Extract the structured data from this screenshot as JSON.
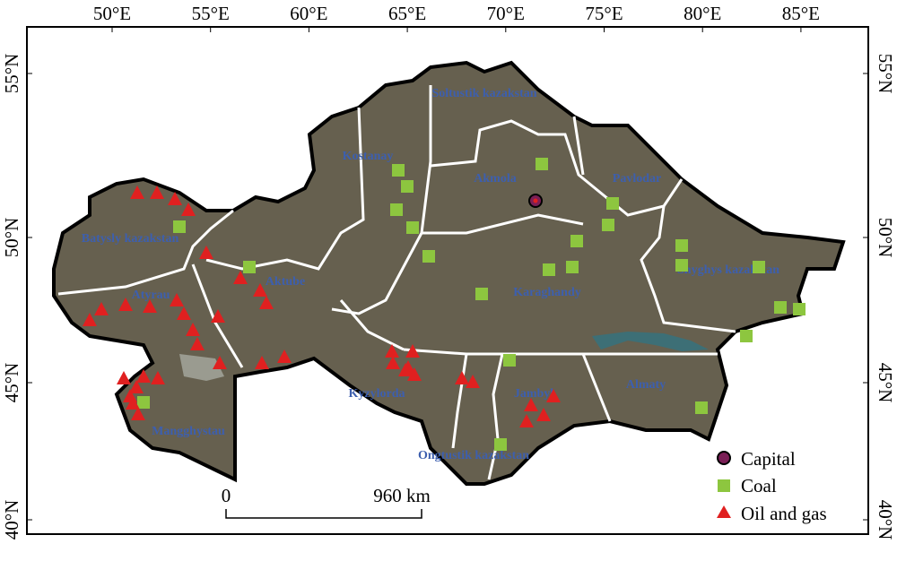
{
  "map": {
    "lon_ticks": [
      {
        "value": 50,
        "label": "50°E"
      },
      {
        "value": 55,
        "label": "55°E"
      },
      {
        "value": 60,
        "label": "60°E"
      },
      {
        "value": 65,
        "label": "65°E"
      },
      {
        "value": 70,
        "label": "70°E"
      },
      {
        "value": 75,
        "label": "75°E"
      },
      {
        "value": 80,
        "label": "80°E"
      },
      {
        "value": 85,
        "label": "85°E"
      }
    ],
    "lat_ticks": [
      {
        "value": 40,
        "label": "40°N"
      },
      {
        "value": 45,
        "label": "45°N"
      },
      {
        "value": 50,
        "label": "50°N"
      },
      {
        "value": 55,
        "label": "55°N"
      }
    ],
    "regions": [
      "Soltustik kazakstan",
      "Kostanay",
      "Akmola",
      "Pavlodar",
      "Batysly kazakstan",
      "Atyrau",
      "Aktube",
      "Karaghandy",
      "Shyghys kazakstan",
      "Kyzylorda",
      "Jambyl",
      "Almaty",
      "Mangghystau",
      "Ongtustik kazakstan"
    ],
    "scale_bar": {
      "start": "0",
      "end": "960 km"
    },
    "legend": [
      "Capital",
      "Coal",
      "Oil and gas"
    ]
  }
}
